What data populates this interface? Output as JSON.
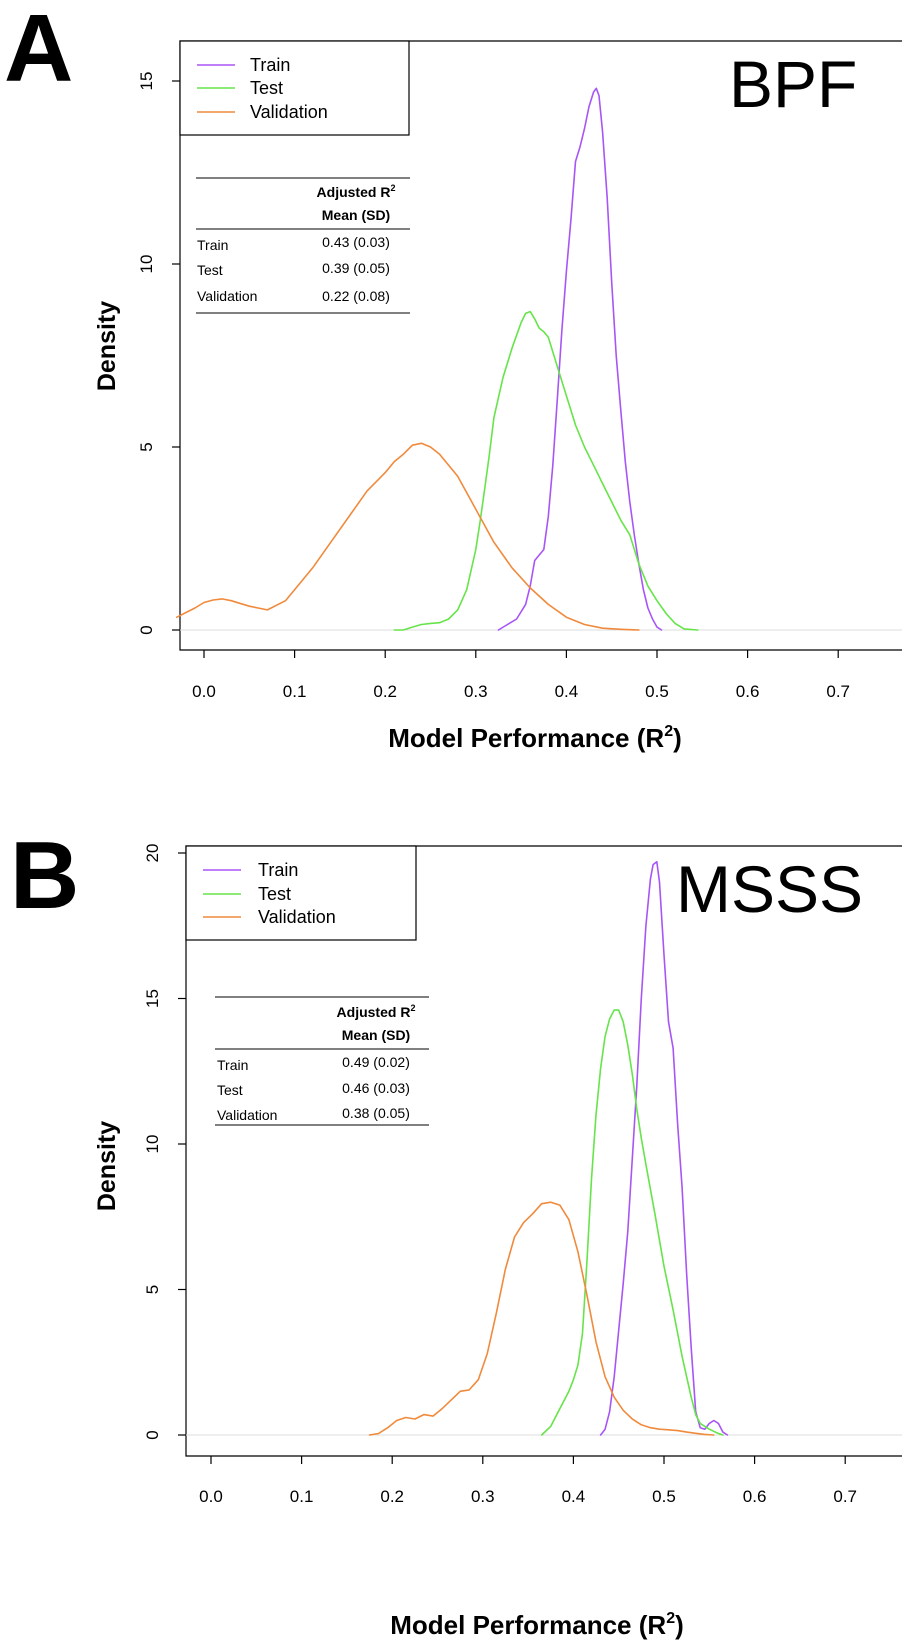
{
  "colors": {
    "train": "#a855f7",
    "test": "#66e44a",
    "validation": "#f08a3c",
    "axis": "#000000",
    "zero_line": "#dddddd"
  },
  "chart_data": [
    {
      "type": "line",
      "panel_label": "A",
      "title": "BPF",
      "xlabel": "Model Performance (R",
      "xlabel_sup": "2",
      "xlabel_close": ")",
      "ylabel": "Density",
      "xlim": [
        -0.03,
        0.73
      ],
      "ylim": [
        0,
        15.5
      ],
      "xticks": [
        0.0,
        0.1,
        0.2,
        0.3,
        0.4,
        0.5,
        0.6,
        0.7
      ],
      "xtick_labels": [
        "0.0",
        "0.1",
        "0.2",
        "0.3",
        "0.4",
        "0.5",
        "0.6",
        "0.7"
      ],
      "yticks": [
        0,
        5,
        10,
        15
      ],
      "ytick_labels": [
        "0",
        "5",
        "10",
        "15"
      ],
      "grid": false,
      "legend_position": "top-left",
      "legend": [
        "Train",
        "Test",
        "Validation"
      ],
      "series": [
        {
          "name": "Train",
          "color_key": "train",
          "x": [
            0.325,
            0.335,
            0.345,
            0.355,
            0.36,
            0.365,
            0.375,
            0.38,
            0.385,
            0.39,
            0.395,
            0.4,
            0.405,
            0.41,
            0.415,
            0.42,
            0.425,
            0.43,
            0.433,
            0.436,
            0.44,
            0.445,
            0.45,
            0.455,
            0.46,
            0.465,
            0.47,
            0.475,
            0.48,
            0.485,
            0.49,
            0.495,
            0.5,
            0.505
          ],
          "y": [
            0,
            0.15,
            0.3,
            0.7,
            1.2,
            1.9,
            2.2,
            3.1,
            4.5,
            6.3,
            8.2,
            9.8,
            11.2,
            12.8,
            13.2,
            13.7,
            14.3,
            14.7,
            14.8,
            14.6,
            13.6,
            11.8,
            9.5,
            7.5,
            6.0,
            4.6,
            3.5,
            2.6,
            1.8,
            1.1,
            0.6,
            0.3,
            0.08,
            0
          ]
        },
        {
          "name": "Test",
          "color_key": "test",
          "x": [
            0.21,
            0.22,
            0.23,
            0.24,
            0.25,
            0.26,
            0.27,
            0.28,
            0.29,
            0.3,
            0.305,
            0.31,
            0.315,
            0.32,
            0.33,
            0.34,
            0.35,
            0.355,
            0.36,
            0.365,
            0.37,
            0.375,
            0.38,
            0.39,
            0.4,
            0.41,
            0.42,
            0.43,
            0.44,
            0.45,
            0.46,
            0.47,
            0.48,
            0.49,
            0.5,
            0.51,
            0.52,
            0.53,
            0.545
          ],
          "y": [
            0,
            0,
            0.08,
            0.15,
            0.18,
            0.2,
            0.3,
            0.55,
            1.1,
            2.2,
            3.0,
            3.9,
            4.8,
            5.8,
            6.9,
            7.7,
            8.4,
            8.65,
            8.7,
            8.5,
            8.25,
            8.15,
            8.0,
            7.2,
            6.4,
            5.6,
            5.0,
            4.5,
            4.0,
            3.5,
            3.0,
            2.6,
            1.8,
            1.2,
            0.8,
            0.45,
            0.18,
            0.03,
            0
          ]
        },
        {
          "name": "Validation",
          "color_key": "validation",
          "x": [
            -0.03,
            -0.01,
            0.0,
            0.01,
            0.02,
            0.03,
            0.05,
            0.07,
            0.09,
            0.1,
            0.12,
            0.14,
            0.16,
            0.18,
            0.2,
            0.21,
            0.22,
            0.23,
            0.24,
            0.25,
            0.26,
            0.28,
            0.3,
            0.32,
            0.34,
            0.36,
            0.38,
            0.4,
            0.42,
            0.44,
            0.46,
            0.48
          ],
          "y": [
            0.35,
            0.6,
            0.75,
            0.82,
            0.85,
            0.8,
            0.65,
            0.55,
            0.8,
            1.1,
            1.7,
            2.4,
            3.1,
            3.8,
            4.3,
            4.6,
            4.8,
            5.05,
            5.1,
            5.0,
            4.8,
            4.2,
            3.3,
            2.4,
            1.7,
            1.15,
            0.7,
            0.35,
            0.15,
            0.05,
            0.02,
            0
          ]
        }
      ],
      "table": {
        "header_line1": "Adjusted R",
        "header_sup": "2",
        "header_line2": "Mean (SD)",
        "rows": [
          {
            "label": "Train",
            "value": "0.43 (0.03)"
          },
          {
            "label": "Test",
            "value": "0.39 (0.05)"
          },
          {
            "label": "Validation",
            "value": "0.22 (0.08)"
          }
        ]
      }
    },
    {
      "type": "line",
      "panel_label": "B",
      "title": "MSSS",
      "xlabel": "Model Performance (R",
      "xlabel_sup": "2",
      "xlabel_close": ")",
      "ylabel": "Density",
      "xlim": [
        -0.03,
        0.73
      ],
      "ylim": [
        0,
        20
      ],
      "xticks": [
        0.0,
        0.1,
        0.2,
        0.3,
        0.4,
        0.5,
        0.6,
        0.7
      ],
      "xtick_labels": [
        "0.0",
        "0.1",
        "0.2",
        "0.3",
        "0.4",
        "0.5",
        "0.6",
        "0.7"
      ],
      "yticks": [
        0,
        5,
        10,
        15,
        20
      ],
      "ytick_labels": [
        "0",
        "5",
        "10",
        "15",
        "20"
      ],
      "grid": false,
      "legend_position": "top-left",
      "legend": [
        "Train",
        "Test",
        "Validation"
      ],
      "series": [
        {
          "name": "Train",
          "color_key": "train",
          "x": [
            0.43,
            0.435,
            0.44,
            0.445,
            0.45,
            0.455,
            0.46,
            0.465,
            0.47,
            0.475,
            0.48,
            0.485,
            0.488,
            0.492,
            0.495,
            0.5,
            0.505,
            0.51,
            0.515,
            0.52,
            0.525,
            0.53,
            0.535,
            0.54,
            0.545,
            0.55,
            0.555,
            0.56,
            0.565,
            0.57
          ],
          "y": [
            0,
            0.2,
            0.8,
            2.0,
            3.6,
            5.2,
            7.0,
            9.5,
            12.0,
            15.0,
            17.5,
            19.1,
            19.6,
            19.7,
            19.0,
            16.5,
            14.2,
            13.3,
            10.7,
            8.5,
            5.5,
            3.0,
            0.8,
            0.25,
            0.2,
            0.4,
            0.5,
            0.4,
            0.1,
            0
          ]
        },
        {
          "name": "Test",
          "color_key": "test",
          "x": [
            0.365,
            0.375,
            0.385,
            0.395,
            0.4,
            0.405,
            0.41,
            0.415,
            0.42,
            0.425,
            0.43,
            0.435,
            0.44,
            0.445,
            0.45,
            0.455,
            0.46,
            0.465,
            0.47,
            0.475,
            0.48,
            0.49,
            0.5,
            0.51,
            0.52,
            0.53,
            0.535,
            0.54,
            0.55,
            0.56,
            0.565
          ],
          "y": [
            0,
            0.3,
            0.9,
            1.5,
            1.9,
            2.4,
            3.5,
            6.0,
            8.8,
            11.0,
            12.6,
            13.7,
            14.3,
            14.6,
            14.6,
            14.2,
            13.4,
            12.4,
            11.2,
            10.2,
            9.3,
            7.6,
            5.8,
            4.3,
            2.7,
            1.3,
            0.7,
            0.4,
            0.2,
            0.05,
            0
          ]
        },
        {
          "name": "Validation",
          "color_key": "validation",
          "x": [
            0.175,
            0.185,
            0.195,
            0.205,
            0.215,
            0.225,
            0.235,
            0.245,
            0.255,
            0.265,
            0.275,
            0.285,
            0.295,
            0.305,
            0.315,
            0.325,
            0.335,
            0.345,
            0.355,
            0.365,
            0.375,
            0.385,
            0.395,
            0.405,
            0.415,
            0.425,
            0.435,
            0.445,
            0.455,
            0.465,
            0.475,
            0.485,
            0.495,
            0.505,
            0.515,
            0.525,
            0.535,
            0.545,
            0.555
          ],
          "y": [
            0,
            0.05,
            0.25,
            0.5,
            0.6,
            0.55,
            0.7,
            0.65,
            0.9,
            1.2,
            1.5,
            1.55,
            1.9,
            2.8,
            4.2,
            5.7,
            6.8,
            7.3,
            7.6,
            7.95,
            8.0,
            7.9,
            7.4,
            6.3,
            4.8,
            3.2,
            2.0,
            1.3,
            0.85,
            0.55,
            0.35,
            0.25,
            0.2,
            0.18,
            0.15,
            0.1,
            0.06,
            0.02,
            0
          ]
        }
      ],
      "table": {
        "header_line1": "Adjusted R",
        "header_sup": "2",
        "header_line2": "Mean (SD)",
        "rows": [
          {
            "label": "Train",
            "value": "0.49 (0.02)"
          },
          {
            "label": "Test",
            "value": "0.46 (0.03)"
          },
          {
            "label": "Validation",
            "value": "0.38 (0.05)"
          }
        ]
      }
    }
  ]
}
